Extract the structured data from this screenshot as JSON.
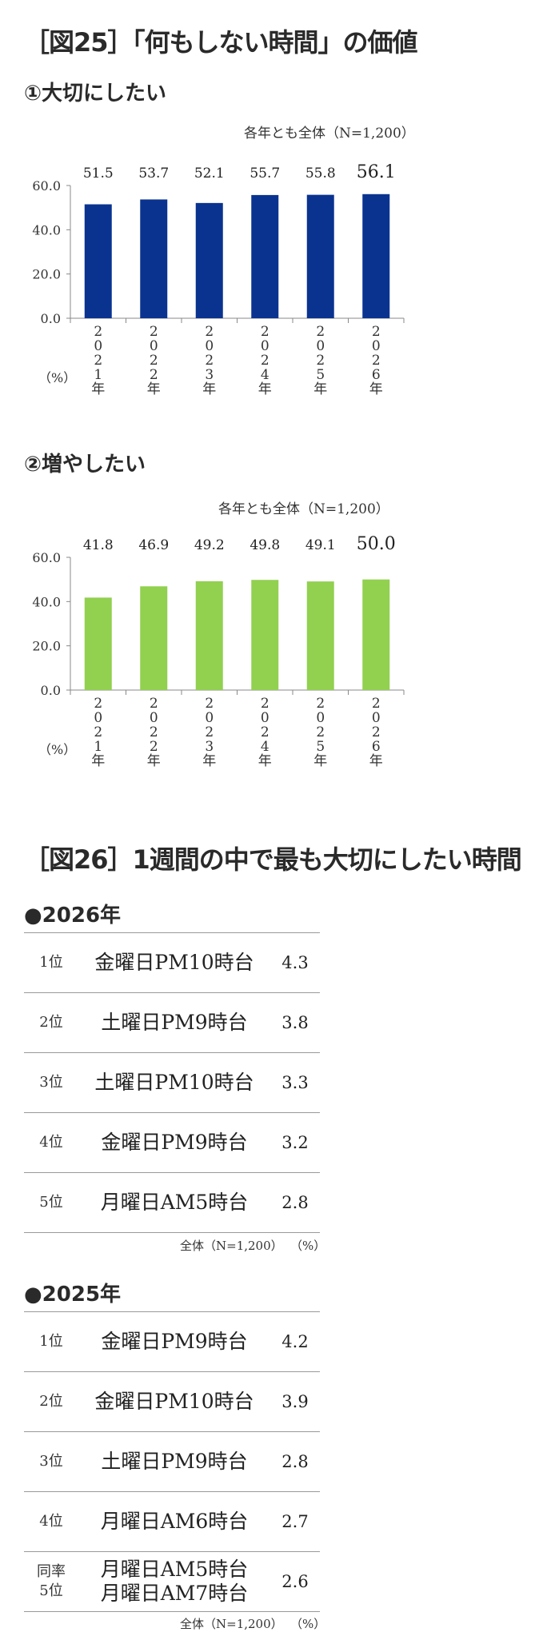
{
  "fig25": {
    "title": "［図25］「何もしない時間」の価値",
    "charts": [
      {
        "subtitle": "①大切にしたい",
        "note": "各年とも全体（N=1,200）",
        "unit": "（%）",
        "color": "#0a3390"
      },
      {
        "subtitle": "②増やしたい",
        "note": "各年とも全体（N=1,200）",
        "unit": "（%）",
        "color": "#92d050"
      }
    ]
  },
  "chart_data": [
    {
      "type": "bar",
      "categories": [
        "2021年",
        "2022年",
        "2023年",
        "2024年",
        "2025年",
        "2026年"
      ],
      "values": [
        51.5,
        53.7,
        52.1,
        55.7,
        55.8,
        56.1
      ],
      "value_labels": [
        "51.5",
        "53.7",
        "52.1",
        "55.7",
        "55.8",
        "56.1"
      ],
      "yticks": [
        "0.0",
        "20.0",
        "40.0",
        "60.0"
      ],
      "ylim": [
        0,
        60
      ],
      "title": "①大切にしたい",
      "ylabel": "（%）",
      "xlabel": "",
      "grid": false
    },
    {
      "type": "bar",
      "categories": [
        "2021年",
        "2022年",
        "2023年",
        "2024年",
        "2025年",
        "2026年"
      ],
      "values": [
        41.8,
        46.9,
        49.2,
        49.8,
        49.1,
        50.0
      ],
      "value_labels": [
        "41.8",
        "46.9",
        "49.2",
        "49.8",
        "49.1",
        "50.0"
      ],
      "yticks": [
        "0.0",
        "20.0",
        "40.0",
        "60.0"
      ],
      "ylim": [
        0,
        60
      ],
      "title": "②増やしたい",
      "ylabel": "（%）",
      "xlabel": "",
      "grid": false
    }
  ],
  "fig26": {
    "title": "［図26］1週間の中で最も大切にしたい時間",
    "tables": [
      {
        "heading": "●2026年",
        "rows": [
          {
            "rank": "1位",
            "item": "金曜日PM10時台",
            "value": "4.3"
          },
          {
            "rank": "2位",
            "item": "土曜日PM9時台",
            "value": "3.8"
          },
          {
            "rank": "3位",
            "item": "土曜日PM10時台",
            "value": "3.3"
          },
          {
            "rank": "4位",
            "item": "金曜日PM9時台",
            "value": "3.2"
          },
          {
            "rank": "5位",
            "item": "月曜日AM5時台",
            "value": "2.8"
          }
        ],
        "note_base": "全体（N=1,200）",
        "note_unit": "（%）"
      },
      {
        "heading": "●2025年",
        "rows": [
          {
            "rank": "1位",
            "item": "金曜日PM9時台",
            "value": "4.2"
          },
          {
            "rank": "2位",
            "item": "金曜日PM10時台",
            "value": "3.9"
          },
          {
            "rank": "3位",
            "item": "土曜日PM9時台",
            "value": "2.8"
          },
          {
            "rank": "4位",
            "item": "月曜日AM6時台",
            "value": "2.7"
          },
          {
            "rank": "同率\n5位",
            "item": "月曜日AM5時台\n月曜日AM7時台",
            "value": "2.6"
          }
        ],
        "note_base": "全体（N=1,200）",
        "note_unit": "（%）"
      }
    ]
  }
}
